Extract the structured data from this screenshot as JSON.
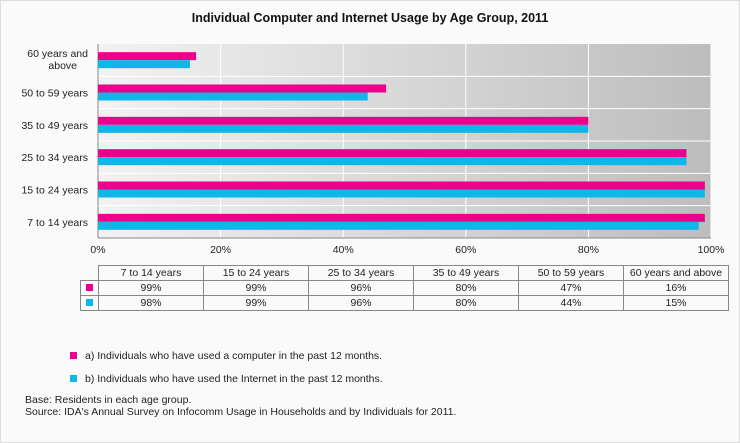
{
  "chart_data": {
    "type": "bar",
    "orientation": "horizontal",
    "title": "Individual Computer and Internet Usage by Age Group, 2011",
    "categories": [
      "7 to 14 years",
      "15 to 24 years",
      "25 to 34 years",
      "35 to 49 years",
      "50 to 59 years",
      "60 years and above"
    ],
    "axis_labels": [
      "7 to 14 years",
      "15 to 24 years",
      "25 to 34 years",
      "35 to 49 years",
      "50 to 59 years",
      "60 years and above"
    ],
    "series": [
      {
        "name": "a) Individuals who have used a computer in the past 12 months.",
        "color": "#ec008c",
        "values": [
          99,
          99,
          96,
          80,
          47,
          16
        ],
        "labels": [
          "99%",
          "99%",
          "96%",
          "80%",
          "47%",
          "16%"
        ]
      },
      {
        "name": "b) Individuals who have used the Internet in the past 12 months.",
        "color": "#0fb6e8",
        "values": [
          98,
          99,
          96,
          80,
          44,
          15
        ],
        "labels": [
          "98%",
          "99%",
          "96%",
          "80%",
          "44%",
          "15%"
        ]
      }
    ],
    "xlim": [
      0,
      100
    ],
    "xticks": [
      "0%",
      "20%",
      "40%",
      "60%",
      "80%",
      "100%"
    ],
    "grid": true
  },
  "notes": {
    "base": "Base: Residents in each age group.",
    "source": "Source: IDA's Annual Survey on Infocomm Usage in Households and by Individuals for 2011."
  }
}
